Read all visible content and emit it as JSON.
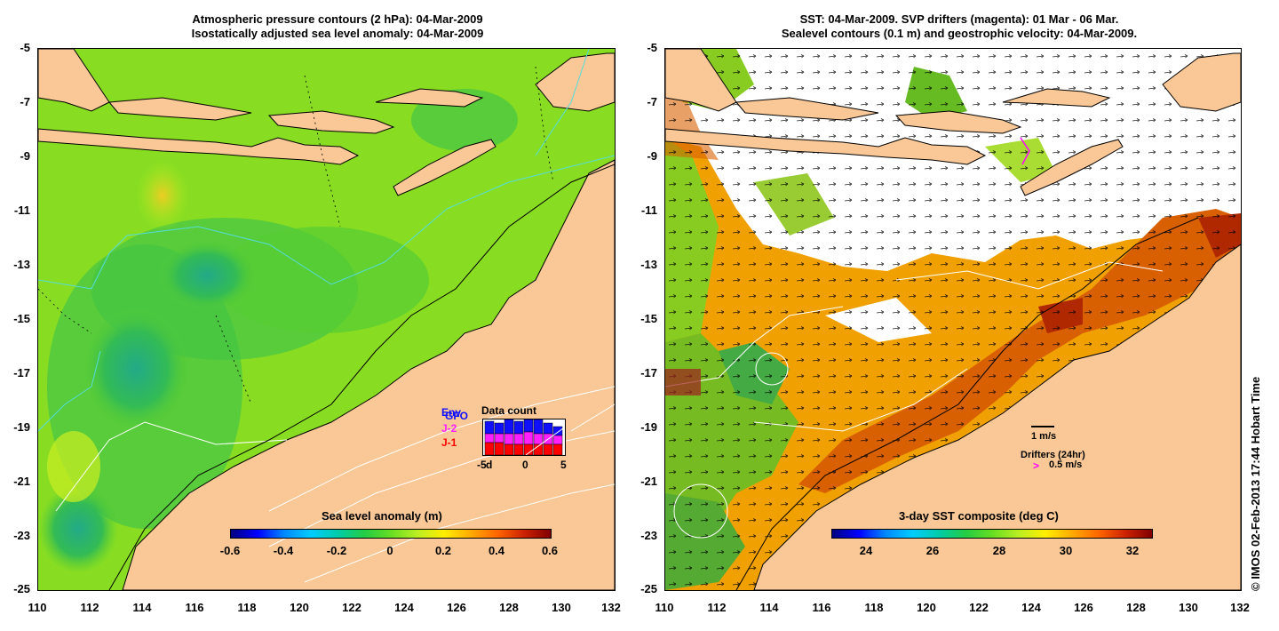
{
  "left_panel": {
    "title_line1": "Atmospheric pressure contours (2 hPa): 04-Mar-2009",
    "title_line2": "Isostatically adjusted sea level anomaly: 04-Mar-2009",
    "y_ticks": [
      "-5",
      "-7",
      "-9",
      "-11",
      "-13",
      "-15",
      "-17",
      "-19",
      "-21",
      "-23",
      "-25"
    ],
    "x_ticks": [
      "110",
      "112",
      "114",
      "116",
      "118",
      "120",
      "122",
      "124",
      "126",
      "128",
      "130",
      "132"
    ],
    "colorbar_title": "Sea level anomaly (m)",
    "colorbar_ticks": [
      "-0.6",
      "-0.4",
      "-0.2",
      "0",
      "0.2",
      "0.4",
      "0.6"
    ],
    "inset": {
      "title": "Data count",
      "legend": [
        "Env",
        "GFO",
        "J-2",
        "J-1"
      ],
      "legend_colors": [
        "#1010ff",
        "#1010ff",
        "#ff20ff",
        "#ff0000"
      ],
      "x_ticks": [
        "-5",
        "d",
        "0",
        "5"
      ]
    }
  },
  "right_panel": {
    "title_line1": "SST: 04-Mar-2009. SVP drifters (magenta): 01 Mar - 06 Mar.",
    "title_line2": "Sealevel contours (0.1 m) and geostrophic velocity: 04-Mar-2009.",
    "y_ticks": [
      "-5",
      "-7",
      "-9",
      "-11",
      "-13",
      "-15",
      "-17",
      "-19",
      "-21",
      "-23",
      "-25"
    ],
    "x_ticks": [
      "110",
      "112",
      "114",
      "116",
      "118",
      "120",
      "122",
      "124",
      "126",
      "128",
      "130",
      "132"
    ],
    "colorbar_title": "3-day SST composite (deg C)",
    "colorbar_ticks": [
      "24",
      "26",
      "28",
      "30",
      "32"
    ],
    "velocity_key": "1 m/s",
    "drifter_key_title": "Drifters (24hr)",
    "drifter_key_value": "0.5 m/s",
    "drifter_symbol": ">"
  },
  "credit": "© IMOS 02-Feb-2013 17:44 Hobart Time",
  "colors": {
    "land": "#f9c896",
    "ocean_green": "#66dd22",
    "ocean_yellowgreen": "#aaee22",
    "ocean_teal": "#22b060",
    "sst_orange": "#f0a000",
    "sst_darkorange": "#d86000",
    "sst_red": "#b02800",
    "cloud_white": "#ffffff"
  }
}
